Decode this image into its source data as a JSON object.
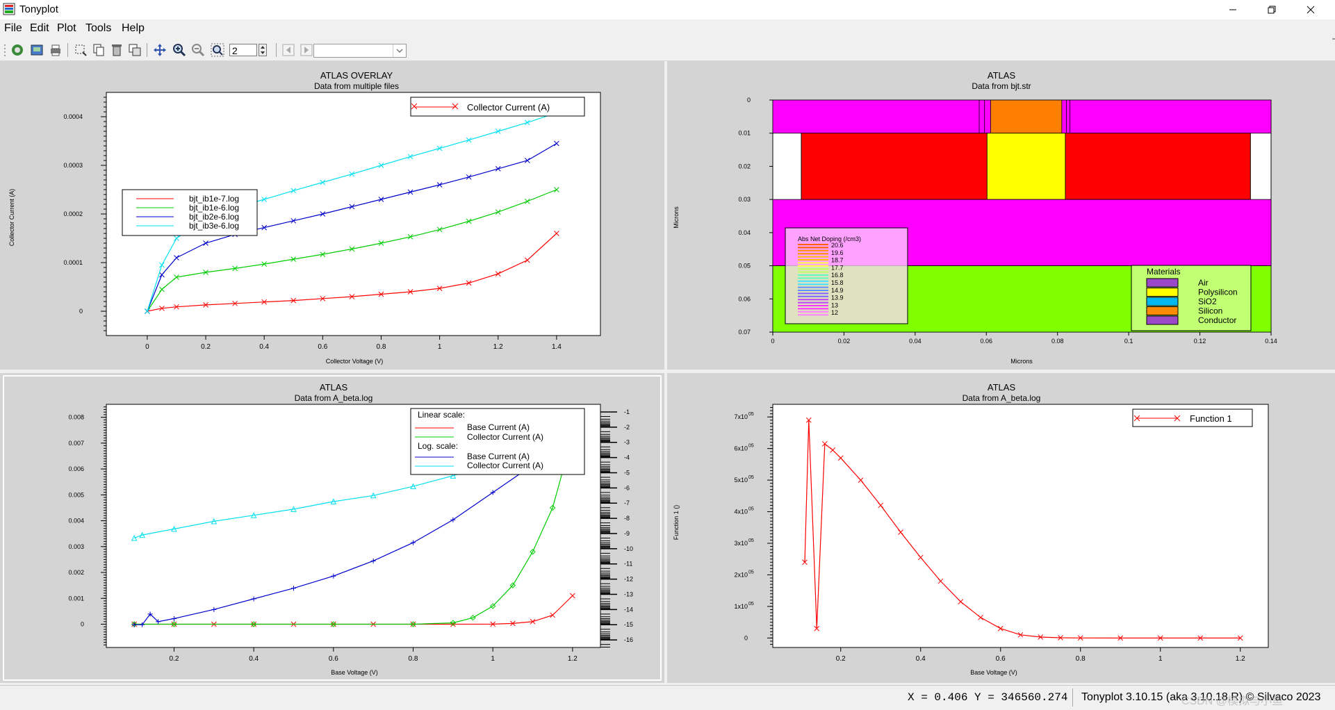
{
  "window": {
    "title": "Tonyplot"
  },
  "menu": [
    "File",
    "Edit",
    "Plot",
    "Tools",
    "Help"
  ],
  "toolbar": {
    "zoom_value": "2",
    "combo_value": ""
  },
  "status": {
    "coords": "X = 0.406 Y = 346560.274",
    "version": "Tonyplot 3.10.15 (aka 3.10.18.R) © Silvaco 2023",
    "watermark": "CSDN @模拟与小鱼"
  },
  "panels": {
    "top_left": {
      "title": "ATLAS OVERLAY",
      "subtitle": "Data from multiple files",
      "legend_top": "Collector Current (A)",
      "legend_files": [
        "bjt_ib1e-7.log",
        "bjt_ib1e-6.log",
        "bjt_ib2e-6.log",
        "bjt_ib3e-6.log"
      ],
      "ylabel": "Collector Current (A)",
      "xlabel": "Collector Voltage (V)",
      "xticks": [
        "0",
        "0.2",
        "0.4",
        "0.6",
        "0.8",
        "1",
        "1.2",
        "1.4"
      ],
      "yticks": [
        "0",
        "0.0001",
        "0.0002",
        "0.0003",
        "0.0004"
      ]
    },
    "top_right": {
      "title": "ATLAS",
      "subtitle": "Data from bjt.str",
      "ylabel": "Microns",
      "xlabel": "Microns",
      "xticks": [
        "0",
        "0.02",
        "0.04",
        "0.06",
        "0.08",
        "0.1",
        "0.12",
        "0.14"
      ],
      "yticks": [
        "0",
        "0.01",
        "0.02",
        "0.03",
        "0.04",
        "0.05",
        "0.06",
        "0.07"
      ],
      "doping_legend_title": "Abs Net Doping (/cm3)",
      "doping_levels": [
        "20.6",
        "19.6",
        "18.7",
        "17.7",
        "16.8",
        "15.8",
        "14.9",
        "13.9",
        "13",
        "12"
      ],
      "materials_title": "Materials",
      "materials": [
        {
          "name": "Air",
          "color": "#9b48c8"
        },
        {
          "name": "Polysilicon",
          "color": "#ffff00"
        },
        {
          "name": "SiO2",
          "color": "#00b8f0"
        },
        {
          "name": "Silicon",
          "color": "#ff8c00"
        },
        {
          "name": "Conductor",
          "color": "#9b48c8"
        }
      ]
    },
    "bottom_left": {
      "title": "ATLAS",
      "subtitle": "Data from A_beta.log",
      "legend": {
        "linear_header": "Linear scale:",
        "linear_items": [
          "Base Current (A)",
          "Collector Current (A)"
        ],
        "log_header": "Log. scale:",
        "log_items": [
          "Base Current (A)",
          "Collector Current (A)"
        ]
      },
      "xlabel": "Base Voltage (V)",
      "xticks": [
        "0.2",
        "0.4",
        "0.6",
        "0.8",
        "1",
        "1.2"
      ],
      "yticks": [
        "0",
        "0.001",
        "0.002",
        "0.003",
        "0.004",
        "0.005",
        "0.006",
        "0.007",
        "0.008"
      ],
      "y2ticks": [
        "-1",
        "-2",
        "-3",
        "-4",
        "-5",
        "-6",
        "-7",
        "-8",
        "-9",
        "-10",
        "-11",
        "-12",
        "-13",
        "-14",
        "-15",
        "-16"
      ]
    },
    "bottom_right": {
      "title": "ATLAS",
      "subtitle": "Data from A_beta.log",
      "legend": "Function 1",
      "ylabel": "Function 1 ()",
      "xlabel": "Base Voltage (V)",
      "xticks": [
        "0.2",
        "0.4",
        "0.6",
        "0.8",
        "1",
        "1.2"
      ],
      "yticks": [
        "0",
        "1x10",
        "2x10",
        "3x10",
        "4x10",
        "5x10",
        "6x10",
        "7x10"
      ],
      "ytick_exp": "05"
    }
  },
  "chart_data": [
    {
      "type": "line",
      "title": "ATLAS OVERLAY",
      "xlabel": "Collector Voltage (V)",
      "ylabel": "Collector Current (A)",
      "xlim": [
        -0.14,
        1.55
      ],
      "ylim": [
        -5e-05,
        0.00045
      ],
      "series": [
        {
          "name": "bjt_ib1e-7.log",
          "color": "#ff0000",
          "x": [
            0,
            0.05,
            0.1,
            0.2,
            0.3,
            0.4,
            0.5,
            0.6,
            0.7,
            0.8,
            0.9,
            1.0,
            1.1,
            1.2,
            1.3,
            1.4
          ],
          "y": [
            0,
            6e-06,
            9e-06,
            1.3e-05,
            1.6e-05,
            1.9e-05,
            2.2e-05,
            2.6e-05,
            3e-05,
            3.5e-05,
            4e-05,
            4.7e-05,
            5.8e-05,
            7.7e-05,
            0.000105,
            0.00016
          ]
        },
        {
          "name": "bjt_ib1e-6.log",
          "color": "#00cc00",
          "x": [
            0,
            0.05,
            0.1,
            0.2,
            0.3,
            0.4,
            0.5,
            0.6,
            0.7,
            0.8,
            0.9,
            1.0,
            1.1,
            1.2,
            1.3,
            1.4
          ],
          "y": [
            0,
            4.5e-05,
            7e-05,
            8e-05,
            8.8e-05,
            9.7e-05,
            0.000107,
            0.000117,
            0.000128,
            0.00014,
            0.000153,
            0.000168,
            0.000185,
            0.000204,
            0.000226,
            0.00025
          ]
        },
        {
          "name": "bjt_ib2e-6.log",
          "color": "#0000cc",
          "x": [
            0,
            0.05,
            0.1,
            0.2,
            0.3,
            0.4,
            0.5,
            0.6,
            0.7,
            0.8,
            0.9,
            1.0,
            1.1,
            1.2,
            1.3,
            1.4
          ],
          "y": [
            0,
            7.5e-05,
            0.00011,
            0.00014,
            0.000158,
            0.000172,
            0.000186,
            0.0002,
            0.000215,
            0.00023,
            0.000245,
            0.00026,
            0.000276,
            0.000293,
            0.00031,
            0.000345
          ]
        },
        {
          "name": "bjt_ib3e-6.log",
          "color": "#00e0f0",
          "x": [
            0,
            0.05,
            0.1,
            0.2,
            0.3,
            0.4,
            0.5,
            0.6,
            0.7,
            0.8,
            0.9,
            1.0,
            1.1,
            1.2,
            1.3,
            1.4
          ],
          "y": [
            0,
            9.5e-05,
            0.00015,
            0.00019,
            0.000213,
            0.00023,
            0.000248,
            0.000265,
            0.000282,
            0.0003,
            0.000318,
            0.000335,
            0.000352,
            0.00037,
            0.000388,
            0.000408
          ]
        }
      ]
    },
    {
      "type": "heatmap",
      "title": "ATLAS",
      "xlabel": "Microns",
      "ylabel": "Microns",
      "xlim": [
        0,
        0.14
      ],
      "ylim": [
        0.07,
        0
      ],
      "regions": [
        {
          "name": "top-conductor-band",
          "color": "#ff00ff",
          "x0": 0,
          "x1": 0.142,
          "y0": 0,
          "y1": 0.01
        },
        {
          "name": "contact",
          "color": "#ff8000",
          "x0": 0.0612,
          "x1": 0.0812,
          "y0": 0,
          "y1": 0.01
        },
        {
          "name": "emitter-left",
          "color": "#ff0000",
          "x0": 0.008,
          "x1": 0.0602,
          "y0": 0.01,
          "y1": 0.03
        },
        {
          "name": "emitter-poly",
          "color": "#ffff00",
          "x0": 0.0602,
          "x1": 0.0822,
          "y0": 0.01,
          "y1": 0.03
        },
        {
          "name": "emitter-right",
          "color": "#ff0000",
          "x0": 0.0822,
          "x1": 0.1342,
          "y0": 0.01,
          "y1": 0.03
        },
        {
          "name": "mid-band",
          "color": "#ff00ff",
          "x0": 0,
          "x1": 0.142,
          "y0": 0.03,
          "y1": 0.05
        },
        {
          "name": "substrate",
          "color": "#80ff00",
          "x0": 0,
          "x1": 0.142,
          "y0": 0.05,
          "y1": 0.07
        }
      ]
    },
    {
      "type": "line",
      "title": "ATLAS",
      "xlabel": "Base Voltage (V)",
      "xlim": [
        0.03,
        1.27
      ],
      "ylim": [
        -0.0009,
        0.0085
      ],
      "y2lim": [
        -16,
        -1
      ],
      "series": [
        {
          "name": "Base Current (A)",
          "scale": "linear",
          "color": "#ff0000",
          "x": [
            0.1,
            0.2,
            0.3,
            0.4,
            0.5,
            0.6,
            0.7,
            0.8,
            0.9,
            1.0,
            1.05,
            1.1,
            1.15,
            1.2
          ],
          "y": [
            0,
            0,
            0,
            0,
            0,
            0,
            0,
            0,
            0,
            2e-06,
            3e-05,
            0.0001,
            0.00035,
            0.0011
          ]
        },
        {
          "name": "Collector Current (A)",
          "scale": "linear",
          "color": "#00cc00",
          "x": [
            0.1,
            0.2,
            0.4,
            0.6,
            0.8,
            0.9,
            0.95,
            1.0,
            1.05,
            1.1,
            1.15,
            1.2
          ],
          "y": [
            0,
            0,
            0,
            0,
            0,
            5e-05,
            0.00025,
            0.0007,
            0.0015,
            0.0028,
            0.0045,
            0.0073
          ]
        },
        {
          "name": "Base Current (A)",
          "scale": "log",
          "color": "#0000cc",
          "x": [
            0.1,
            0.12,
            0.14,
            0.16,
            0.2,
            0.3,
            0.4,
            0.5,
            0.6,
            0.7,
            0.8,
            0.9,
            1.0,
            1.1,
            1.2
          ],
          "y": [
            -15,
            -15,
            -14.3,
            -14.8,
            -14.6,
            -14.0,
            -13.3,
            -12.6,
            -11.8,
            -10.8,
            -9.6,
            -8.1,
            -6.3,
            -4.5,
            -3.1
          ]
        },
        {
          "name": "Collector Current (A)",
          "scale": "log",
          "color": "#00e0f0",
          "x": [
            0.1,
            0.12,
            0.2,
            0.3,
            0.4,
            0.5,
            0.6,
            0.7,
            0.8,
            0.9,
            1.0,
            1.1,
            1.2
          ],
          "y": [
            -9.3,
            -9.1,
            -8.7,
            -8.2,
            -7.8,
            -7.4,
            -6.9,
            -6.5,
            -5.9,
            -5.2,
            -4.4,
            -3.6,
            -2.9
          ]
        }
      ]
    },
    {
      "type": "line",
      "title": "ATLAS",
      "xlabel": "Base Voltage (V)",
      "ylabel": "Function 1 ()",
      "xlim": [
        0.03,
        1.27
      ],
      "ylim": [
        -30000,
        740000
      ],
      "series": [
        {
          "name": "Function 1",
          "color": "#ff0000",
          "x": [
            0.11,
            0.12,
            0.14,
            0.16,
            0.18,
            0.2,
            0.25,
            0.3,
            0.35,
            0.4,
            0.45,
            0.5,
            0.55,
            0.6,
            0.65,
            0.7,
            0.75,
            0.8,
            0.9,
            1.0,
            1.1,
            1.2
          ],
          "y": [
            240000,
            690000,
            30000,
            615000,
            595000,
            570000,
            500000,
            420000,
            335000,
            255000,
            180000,
            115000,
            65000,
            30000,
            10000,
            3000,
            800,
            200,
            0,
            0,
            0,
            0
          ]
        }
      ]
    }
  ]
}
